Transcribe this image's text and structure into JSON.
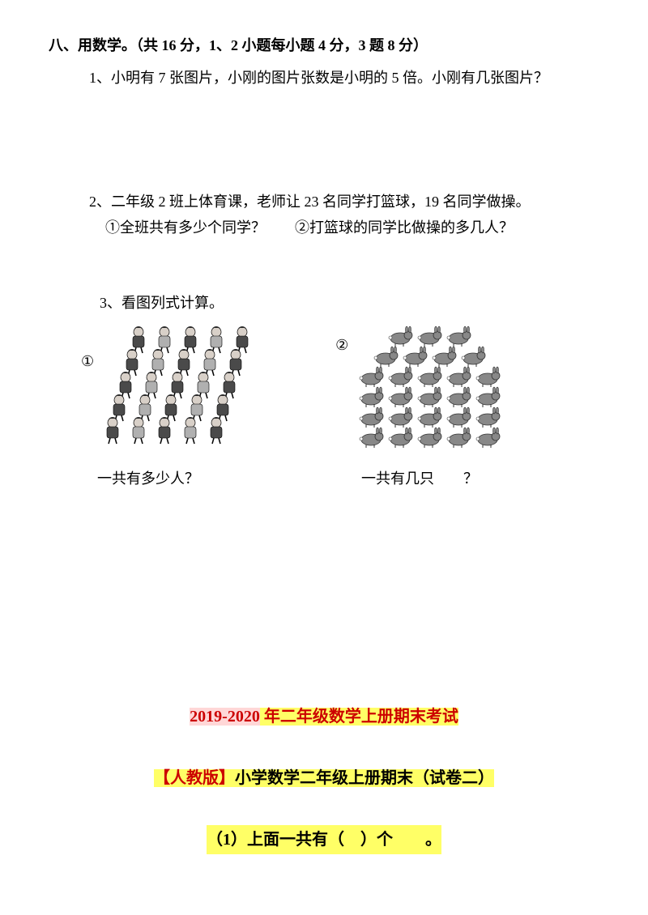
{
  "header": {
    "text": "八、用数学。（共 16 分，1、2 小题每小题 4 分，3 题 8 分）"
  },
  "q1": {
    "text": "1、小明有 7 张图片，小刚的图片张数是小明的 5 倍。小刚有几张图片？"
  },
  "q2": {
    "text": "2、二年级 2 班上体育课，老师让 23 名同学打篮球，19 名同学做操。",
    "sub": "①全班共有多少个同学？　　②打篮球的同学比做操的多几人？"
  },
  "q3": {
    "title": "3、看图列式计算。",
    "num1": "①",
    "num2": "②",
    "caption1": "一共有多少人？",
    "caption2": "一共有几只　　？"
  },
  "bottom": {
    "line1a": "2019-2020",
    "line1b": " 年二年级数学上册期末考试",
    "line2a": "【人教版】",
    "line2b": "小学数学二年级上册期末（试卷二）",
    "line3": "（1）上面一共有（　）个　　。"
  },
  "img1": {
    "type": "infographic",
    "rows": 5,
    "per_row": 5,
    "colors": {
      "hair": "#2a2a2a",
      "face": "#d8d0c8",
      "body_dark": "#4a4a4a",
      "body_light": "#b0b0b0"
    }
  },
  "img2": {
    "type": "infographic",
    "rows": 6,
    "cols": [
      3,
      4,
      5,
      5,
      5,
      5
    ],
    "rabbit_color": "#888888",
    "outline": "#333333"
  }
}
